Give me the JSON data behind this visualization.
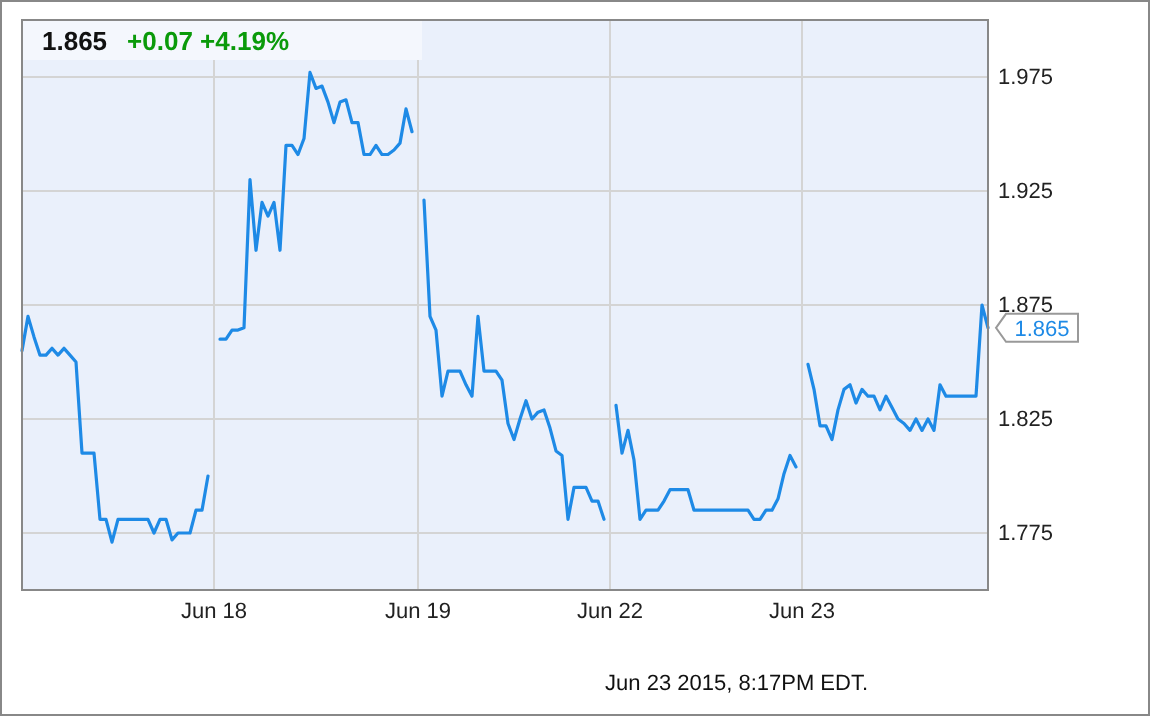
{
  "chart_data": {
    "type": "line",
    "title": "1.865",
    "subtitle": "+0.07  +4.19%",
    "categories": [
      null,
      null,
      null,
      null,
      null,
      null,
      null,
      null,
      null,
      null,
      null,
      null,
      null,
      null,
      null,
      null,
      null,
      null,
      null,
      null,
      null,
      null,
      null,
      null,
      null,
      null,
      null,
      null,
      null,
      null,
      null,
      null,
      "Jun 18",
      null,
      null,
      null,
      null,
      null,
      null,
      null,
      null,
      null,
      null,
      null,
      null,
      null,
      null,
      null,
      null,
      null,
      null,
      null,
      null,
      null,
      null,
      null,
      null,
      null,
      null,
      null,
      null,
      null,
      null,
      null,
      null,
      null,
      "Jun 19",
      null,
      null,
      null,
      null,
      null,
      null,
      null,
      null,
      null,
      null,
      null,
      null,
      null,
      null,
      null,
      null,
      null,
      null,
      null,
      null,
      null,
      null,
      null,
      null,
      null,
      null,
      null,
      null,
      null,
      null,
      null,
      "Jun 22",
      null,
      null,
      null,
      null,
      null,
      null,
      null,
      null,
      null,
      null,
      null,
      null,
      null,
      null,
      null,
      null,
      null,
      null,
      null,
      null,
      null,
      null,
      null,
      null,
      null,
      null,
      null,
      null,
      null,
      null,
      null,
      "Jun 23",
      null,
      null,
      null,
      null,
      null,
      null,
      null,
      null,
      null,
      null,
      null,
      null,
      null,
      null,
      null,
      null,
      null,
      null,
      null,
      null,
      null,
      null,
      null,
      null,
      null,
      null,
      null,
      null,
      null,
      null,
      null
    ],
    "ylim": [
      1.75,
      2.0
    ],
    "yticks": [
      1.775,
      1.825,
      1.875,
      1.925,
      1.975
    ],
    "grid": true,
    "marker": "none",
    "line_style": "solid",
    "annotations": [
      "1.865",
      "Jun 23 2015, 8:17PM EDT."
    ],
    "series": [
      {
        "color": "#1e8ae6",
        "values": [
          1.855,
          1.87,
          1.861,
          1.853,
          1.853,
          1.856,
          1.853,
          1.856,
          1.853,
          1.85,
          1.81,
          1.81,
          1.81,
          1.781,
          1.781,
          1.771,
          1.781,
          1.781,
          1.781,
          1.781,
          1.781,
          1.781,
          1.775,
          1.781,
          1.781,
          1.772,
          1.775,
          1.775,
          1.775,
          1.785,
          1.785,
          1.8,
          null,
          1.86,
          1.86,
          1.864,
          1.864,
          1.865,
          1.93,
          1.899,
          1.92,
          1.914,
          1.92,
          1.899,
          1.945,
          1.945,
          1.941,
          1.948,
          1.977,
          1.97,
          1.971,
          1.964,
          1.955,
          1.964,
          1.965,
          1.955,
          1.955,
          1.941,
          1.941,
          1.945,
          1.941,
          1.941,
          1.943,
          1.946,
          1.961,
          1.951,
          null,
          1.921,
          1.87,
          1.864,
          1.835,
          1.846,
          1.846,
          1.846,
          1.84,
          1.835,
          1.87,
          1.846,
          1.846,
          1.846,
          1.842,
          1.823,
          1.816,
          1.825,
          1.833,
          1.825,
          1.828,
          1.829,
          1.821,
          1.811,
          1.809,
          1.781,
          1.795,
          1.795,
          1.795,
          1.789,
          1.789,
          1.781,
          null,
          1.831,
          1.81,
          1.82,
          1.807,
          1.781,
          1.785,
          1.785,
          1.785,
          1.789,
          1.794,
          1.794,
          1.794,
          1.794,
          1.785,
          1.785,
          1.785,
          1.785,
          1.785,
          1.785,
          1.785,
          1.785,
          1.785,
          1.785,
          1.781,
          1.781,
          1.785,
          1.785,
          1.79,
          1.801,
          1.809,
          1.804,
          null,
          1.849,
          1.838,
          1.822,
          1.822,
          1.816,
          1.829,
          1.838,
          1.84,
          1.832,
          1.838,
          1.835,
          1.835,
          1.829,
          1.835,
          1.83,
          1.825,
          1.823,
          1.82,
          1.825,
          1.82,
          1.825,
          1.82,
          1.84,
          1.835,
          1.835,
          1.835,
          1.835,
          1.835,
          1.835,
          1.875,
          1.865
        ]
      }
    ]
  }
}
